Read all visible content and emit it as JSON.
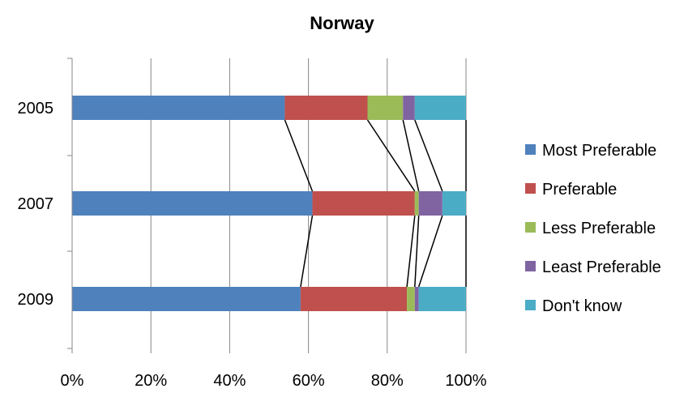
{
  "chart_data": {
    "type": "bar",
    "orientation": "horizontal",
    "stacked": "100%",
    "title": "Norway",
    "categories": [
      "2005",
      "2007",
      "2009"
    ],
    "series": [
      {
        "name": "Most Preferable",
        "color": "#4F81BD",
        "values": [
          54,
          61,
          58
        ]
      },
      {
        "name": "Preferable",
        "color": "#C0504D",
        "values": [
          21,
          26,
          27
        ]
      },
      {
        "name": "Less Preferable",
        "color": "#9BBB59",
        "values": [
          9,
          1,
          2
        ]
      },
      {
        "name": "Least Preferable",
        "color": "#8064A2",
        "values": [
          3,
          6,
          1
        ]
      },
      {
        "name": "Don't know",
        "color": "#4BACC6",
        "values": [
          13,
          6,
          12
        ]
      }
    ],
    "x_ticks": [
      "0%",
      "20%",
      "40%",
      "60%",
      "80%",
      "100%"
    ],
    "xlim": [
      0,
      100
    ],
    "grid": true,
    "series_lines": true,
    "legend_position": "right"
  }
}
